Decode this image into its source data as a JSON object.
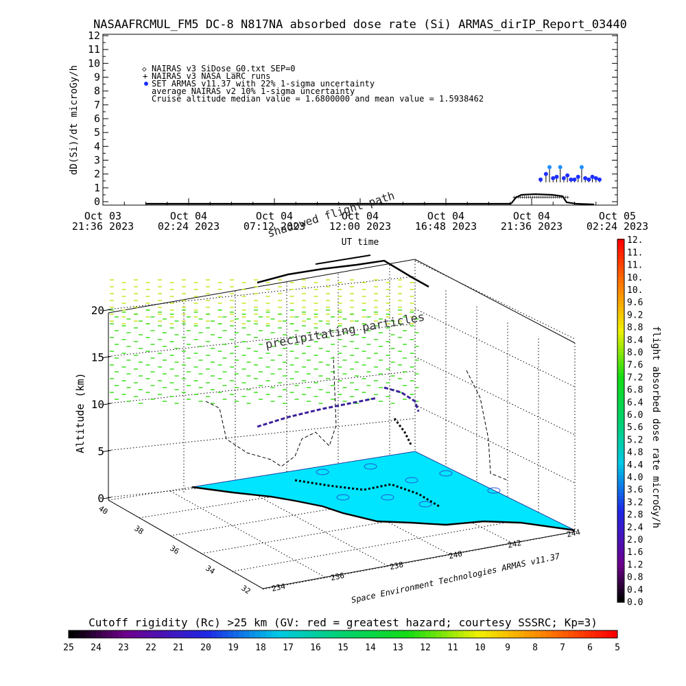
{
  "chart_data": [
    {
      "type": "scatter",
      "title": "NASAAFRCMUL_FM5 DC-8   N817NA absorbed dose rate (Si) ARMAS_dirIP_Report_03440",
      "ylabel": "dD(Si)/dt microGy/h",
      "xlabel": "UT time",
      "ylim": [
        0,
        12
      ],
      "yticks": [
        "0",
        "1",
        "2",
        "3",
        "4",
        "5",
        "6",
        "7",
        "8",
        "9",
        "10",
        "11",
        "12"
      ],
      "xticks": [
        {
          "line1": "Oct 03",
          "line2": "21:36 2023"
        },
        {
          "line1": "Oct 04",
          "line2": "02:24 2023"
        },
        {
          "line1": "Oct 04",
          "line2": "07:12 2023"
        },
        {
          "line1": "Oct 04",
          "line2": "12:00 2023"
        },
        {
          "line1": "Oct 04",
          "line2": "16:48 2023"
        },
        {
          "line1": "Oct 04",
          "line2": "21:36 2023"
        },
        {
          "line1": "Oct 05",
          "line2": "02:24 2023"
        }
      ],
      "legend": [
        {
          "marker": "diamond",
          "text": "NAIRAS v3 SiDose_G0.txt SEP=0"
        },
        {
          "marker": "plus",
          "text": "NAIRAS v3 NASA LaRC runs"
        },
        {
          "marker": "blue-dot",
          "text": "SET ARMAS v11.37 with 22% 1-sigma uncertainty"
        },
        {
          "marker": "none",
          "text": "average NAIRAS v2 10% 1-sigma uncertainty"
        },
        {
          "marker": "none",
          "text": "Cruise altitude median value = 1.6800000 and mean value = 1.5938462"
        }
      ],
      "x_unit": "hours since Oct 03 21:36 UT",
      "armas_points": [
        {
          "x": 24.5,
          "y": 1.6
        },
        {
          "x": 24.8,
          "y": 2.0
        },
        {
          "x": 25.0,
          "y": 2.5
        },
        {
          "x": 25.2,
          "y": 1.7
        },
        {
          "x": 25.4,
          "y": 1.8
        },
        {
          "x": 25.6,
          "y": 2.5
        },
        {
          "x": 25.8,
          "y": 1.7
        },
        {
          "x": 26.0,
          "y": 1.9
        },
        {
          "x": 26.2,
          "y": 1.6
        },
        {
          "x": 26.4,
          "y": 1.6
        },
        {
          "x": 26.6,
          "y": 1.8
        },
        {
          "x": 26.8,
          "y": 2.5
        },
        {
          "x": 27.0,
          "y": 1.7
        },
        {
          "x": 27.2,
          "y": 1.6
        },
        {
          "x": 27.4,
          "y": 1.8
        },
        {
          "x": 27.6,
          "y": 1.7
        },
        {
          "x": 27.8,
          "y": 1.6
        }
      ]
    },
    {
      "type": "scatter",
      "title": "flight absorbed dose rate microGy/h",
      "zlabel": "Altitude (km)",
      "zticks": [
        "0",
        "5",
        "10",
        "15",
        "20"
      ],
      "lat_ticks": [
        "40",
        "38",
        "36",
        "34",
        "32"
      ],
      "lon_ticks": [
        "234",
        "236",
        "238",
        "240",
        "242",
        "244"
      ],
      "annotations": [
        "shadowed flight path",
        "precipitating particles"
      ],
      "credit": "Space Environment Technologies ARMAS v11.37",
      "dose_colorbar": {
        "ticks": [
          "0.0",
          "0.4",
          "0.8",
          "1.2",
          "1.6",
          "2.0",
          "2.4",
          "2.8",
          "3.2",
          "3.6",
          "4.0",
          "4.4",
          "4.8",
          "5.2",
          "5.6",
          "6.0",
          "6.4",
          "6.8",
          "7.2",
          "7.6",
          "8.0",
          "8.4",
          "8.8",
          "9.2",
          "9.6",
          "10.",
          "10.",
          "11.",
          "11.",
          "12."
        ],
        "range": [
          0,
          12
        ]
      },
      "rc_colorbar": {
        "label": "Cutoff rigidity (Rc) >25 km (GV: red = greatest hazard; courtesy SSSRC; Kp=3)",
        "ticks": [
          "25",
          "24",
          "23",
          "22",
          "21",
          "20",
          "19",
          "18",
          "17",
          "16",
          "15",
          "14",
          "13",
          "12",
          "11",
          "10",
          "9",
          "8",
          "7",
          "6",
          "5"
        ]
      }
    }
  ],
  "colors": {
    "armas": "#1f2fff",
    "armas_err": "#1e90ff",
    "ground": "#00e5ff",
    "precip_high": "#c8e61e",
    "precip_low": "#3cdc1e",
    "flight": "#3a1f9a"
  }
}
